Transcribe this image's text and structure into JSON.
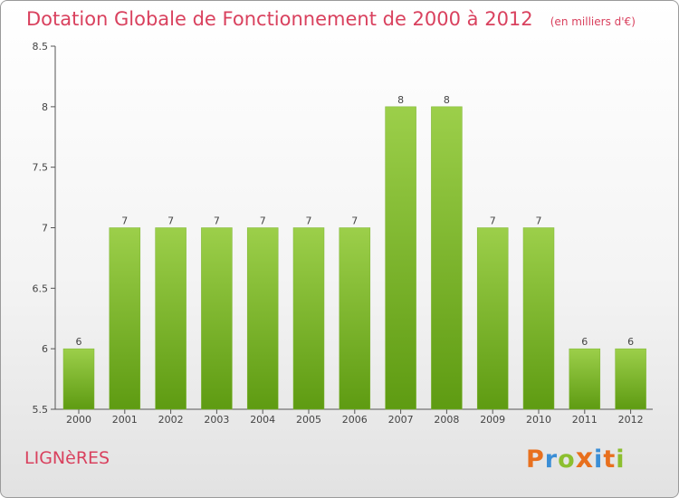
{
  "chart_data": {
    "type": "bar",
    "title": "Dotation Globale de Fonctionnement de 2000 à 2012",
    "unit_note": "(en milliers d'€)",
    "categories": [
      "2000",
      "2001",
      "2002",
      "2003",
      "2004",
      "2005",
      "2006",
      "2007",
      "2008",
      "2009",
      "2010",
      "2011",
      "2012"
    ],
    "values": [
      6,
      7,
      7,
      7,
      7,
      7,
      7,
      8,
      8,
      7,
      7,
      6,
      6
    ],
    "value_labels": [
      "6",
      "7",
      "7",
      "7",
      "7",
      "7",
      "7",
      "8",
      "8",
      "7",
      "7",
      "6",
      "6"
    ],
    "ylim": [
      5.5,
      8.5
    ],
    "yticks": [
      "5.5",
      "6",
      "6.5",
      "7",
      "7.5",
      "8",
      "8.5"
    ],
    "grid": false,
    "bar_color_top": "#9ccf4a",
    "bar_color_bottom": "#5e9b12"
  },
  "footer": {
    "town": "LIGNèRES",
    "logo_text": "Proxiti",
    "logo_colors": [
      "#e8701e",
      "#3b8ed6",
      "#8cbf2f",
      "#e8701e",
      "#3b8ed6",
      "#e8701e",
      "#8cbf2f"
    ]
  },
  "colors": {
    "accent": "#d9415e",
    "axis": "#555555"
  }
}
